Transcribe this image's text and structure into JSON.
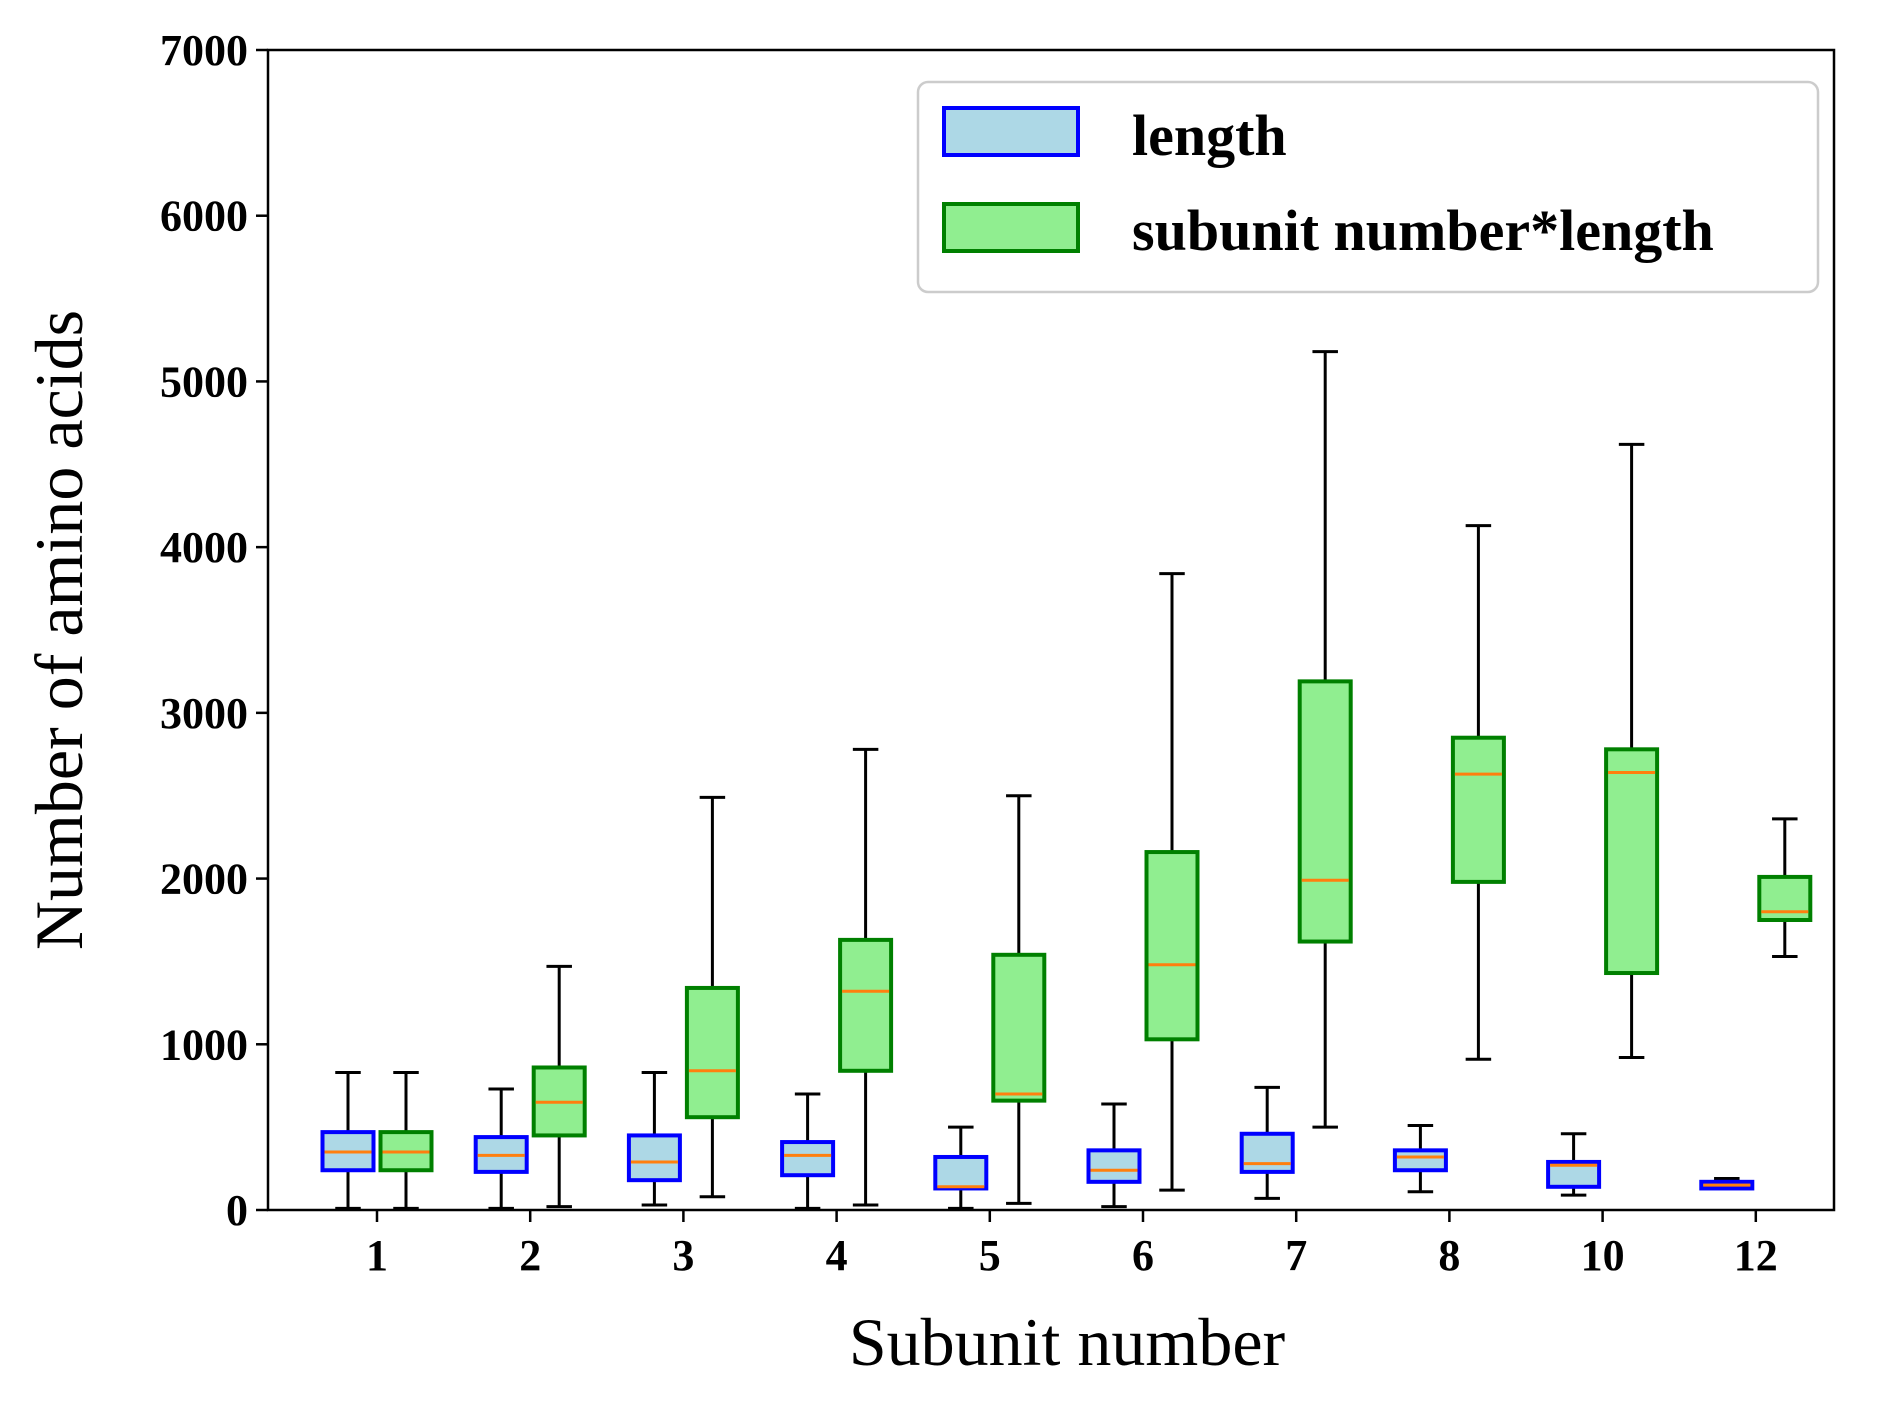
{
  "chart_data": {
    "type": "box",
    "xlabel": "Subunit number",
    "ylabel": "Number of amino acids",
    "ylim": [
      0,
      7000
    ],
    "yticks": [
      0,
      1000,
      2000,
      3000,
      4000,
      5000,
      6000,
      7000
    ],
    "categories": [
      "1",
      "2",
      "3",
      "4",
      "5",
      "6",
      "7",
      "8",
      "10",
      "12"
    ],
    "legend_position": "top-right",
    "grid": false,
    "colors": {
      "length_fill": "#add8e6",
      "length_edge": "#0000ff",
      "product_fill": "#90ee90",
      "product_edge": "#008000",
      "median": "#ff7f0e",
      "whisker": "#000000"
    },
    "series": [
      {
        "name": "length",
        "boxes": [
          {
            "whislo": 10,
            "q1": 240,
            "med": 350,
            "q3": 470,
            "whishi": 830
          },
          {
            "whislo": 10,
            "q1": 230,
            "med": 330,
            "q3": 440,
            "whishi": 730
          },
          {
            "whislo": 30,
            "q1": 180,
            "med": 290,
            "q3": 450,
            "whishi": 830
          },
          {
            "whislo": 10,
            "q1": 210,
            "med": 330,
            "q3": 410,
            "whishi": 700
          },
          {
            "whislo": 10,
            "q1": 130,
            "med": 140,
            "q3": 320,
            "whishi": 500
          },
          {
            "whislo": 20,
            "q1": 170,
            "med": 240,
            "q3": 360,
            "whishi": 640
          },
          {
            "whislo": 70,
            "q1": 230,
            "med": 280,
            "q3": 460,
            "whishi": 740
          },
          {
            "whislo": 110,
            "q1": 240,
            "med": 320,
            "q3": 360,
            "whishi": 510
          },
          {
            "whislo": 90,
            "q1": 140,
            "med": 270,
            "q3": 290,
            "whishi": 460
          },
          {
            "whislo": 130,
            "q1": 130,
            "med": 150,
            "q3": 170,
            "whishi": 190
          }
        ]
      },
      {
        "name": "subunit number*length",
        "boxes": [
          {
            "whislo": 10,
            "q1": 240,
            "med": 350,
            "q3": 470,
            "whishi": 830
          },
          {
            "whislo": 20,
            "q1": 450,
            "med": 650,
            "q3": 860,
            "whishi": 1470
          },
          {
            "whislo": 80,
            "q1": 560,
            "med": 840,
            "q3": 1340,
            "whishi": 2490
          },
          {
            "whislo": 30,
            "q1": 840,
            "med": 1320,
            "q3": 1630,
            "whishi": 2780
          },
          {
            "whislo": 40,
            "q1": 660,
            "med": 700,
            "q3": 1540,
            "whishi": 2500
          },
          {
            "whislo": 120,
            "q1": 1030,
            "med": 1480,
            "q3": 2160,
            "whishi": 3840
          },
          {
            "whislo": 500,
            "q1": 1620,
            "med": 1990,
            "q3": 3190,
            "whishi": 5180
          },
          {
            "whislo": 910,
            "q1": 1980,
            "med": 2630,
            "q3": 2850,
            "whishi": 4130
          },
          {
            "whislo": 920,
            "q1": 1430,
            "med": 2640,
            "q3": 2780,
            "whishi": 4620
          },
          {
            "whislo": 1530,
            "q1": 1750,
            "med": 1800,
            "q3": 2010,
            "whishi": 2360
          }
        ]
      }
    ]
  }
}
